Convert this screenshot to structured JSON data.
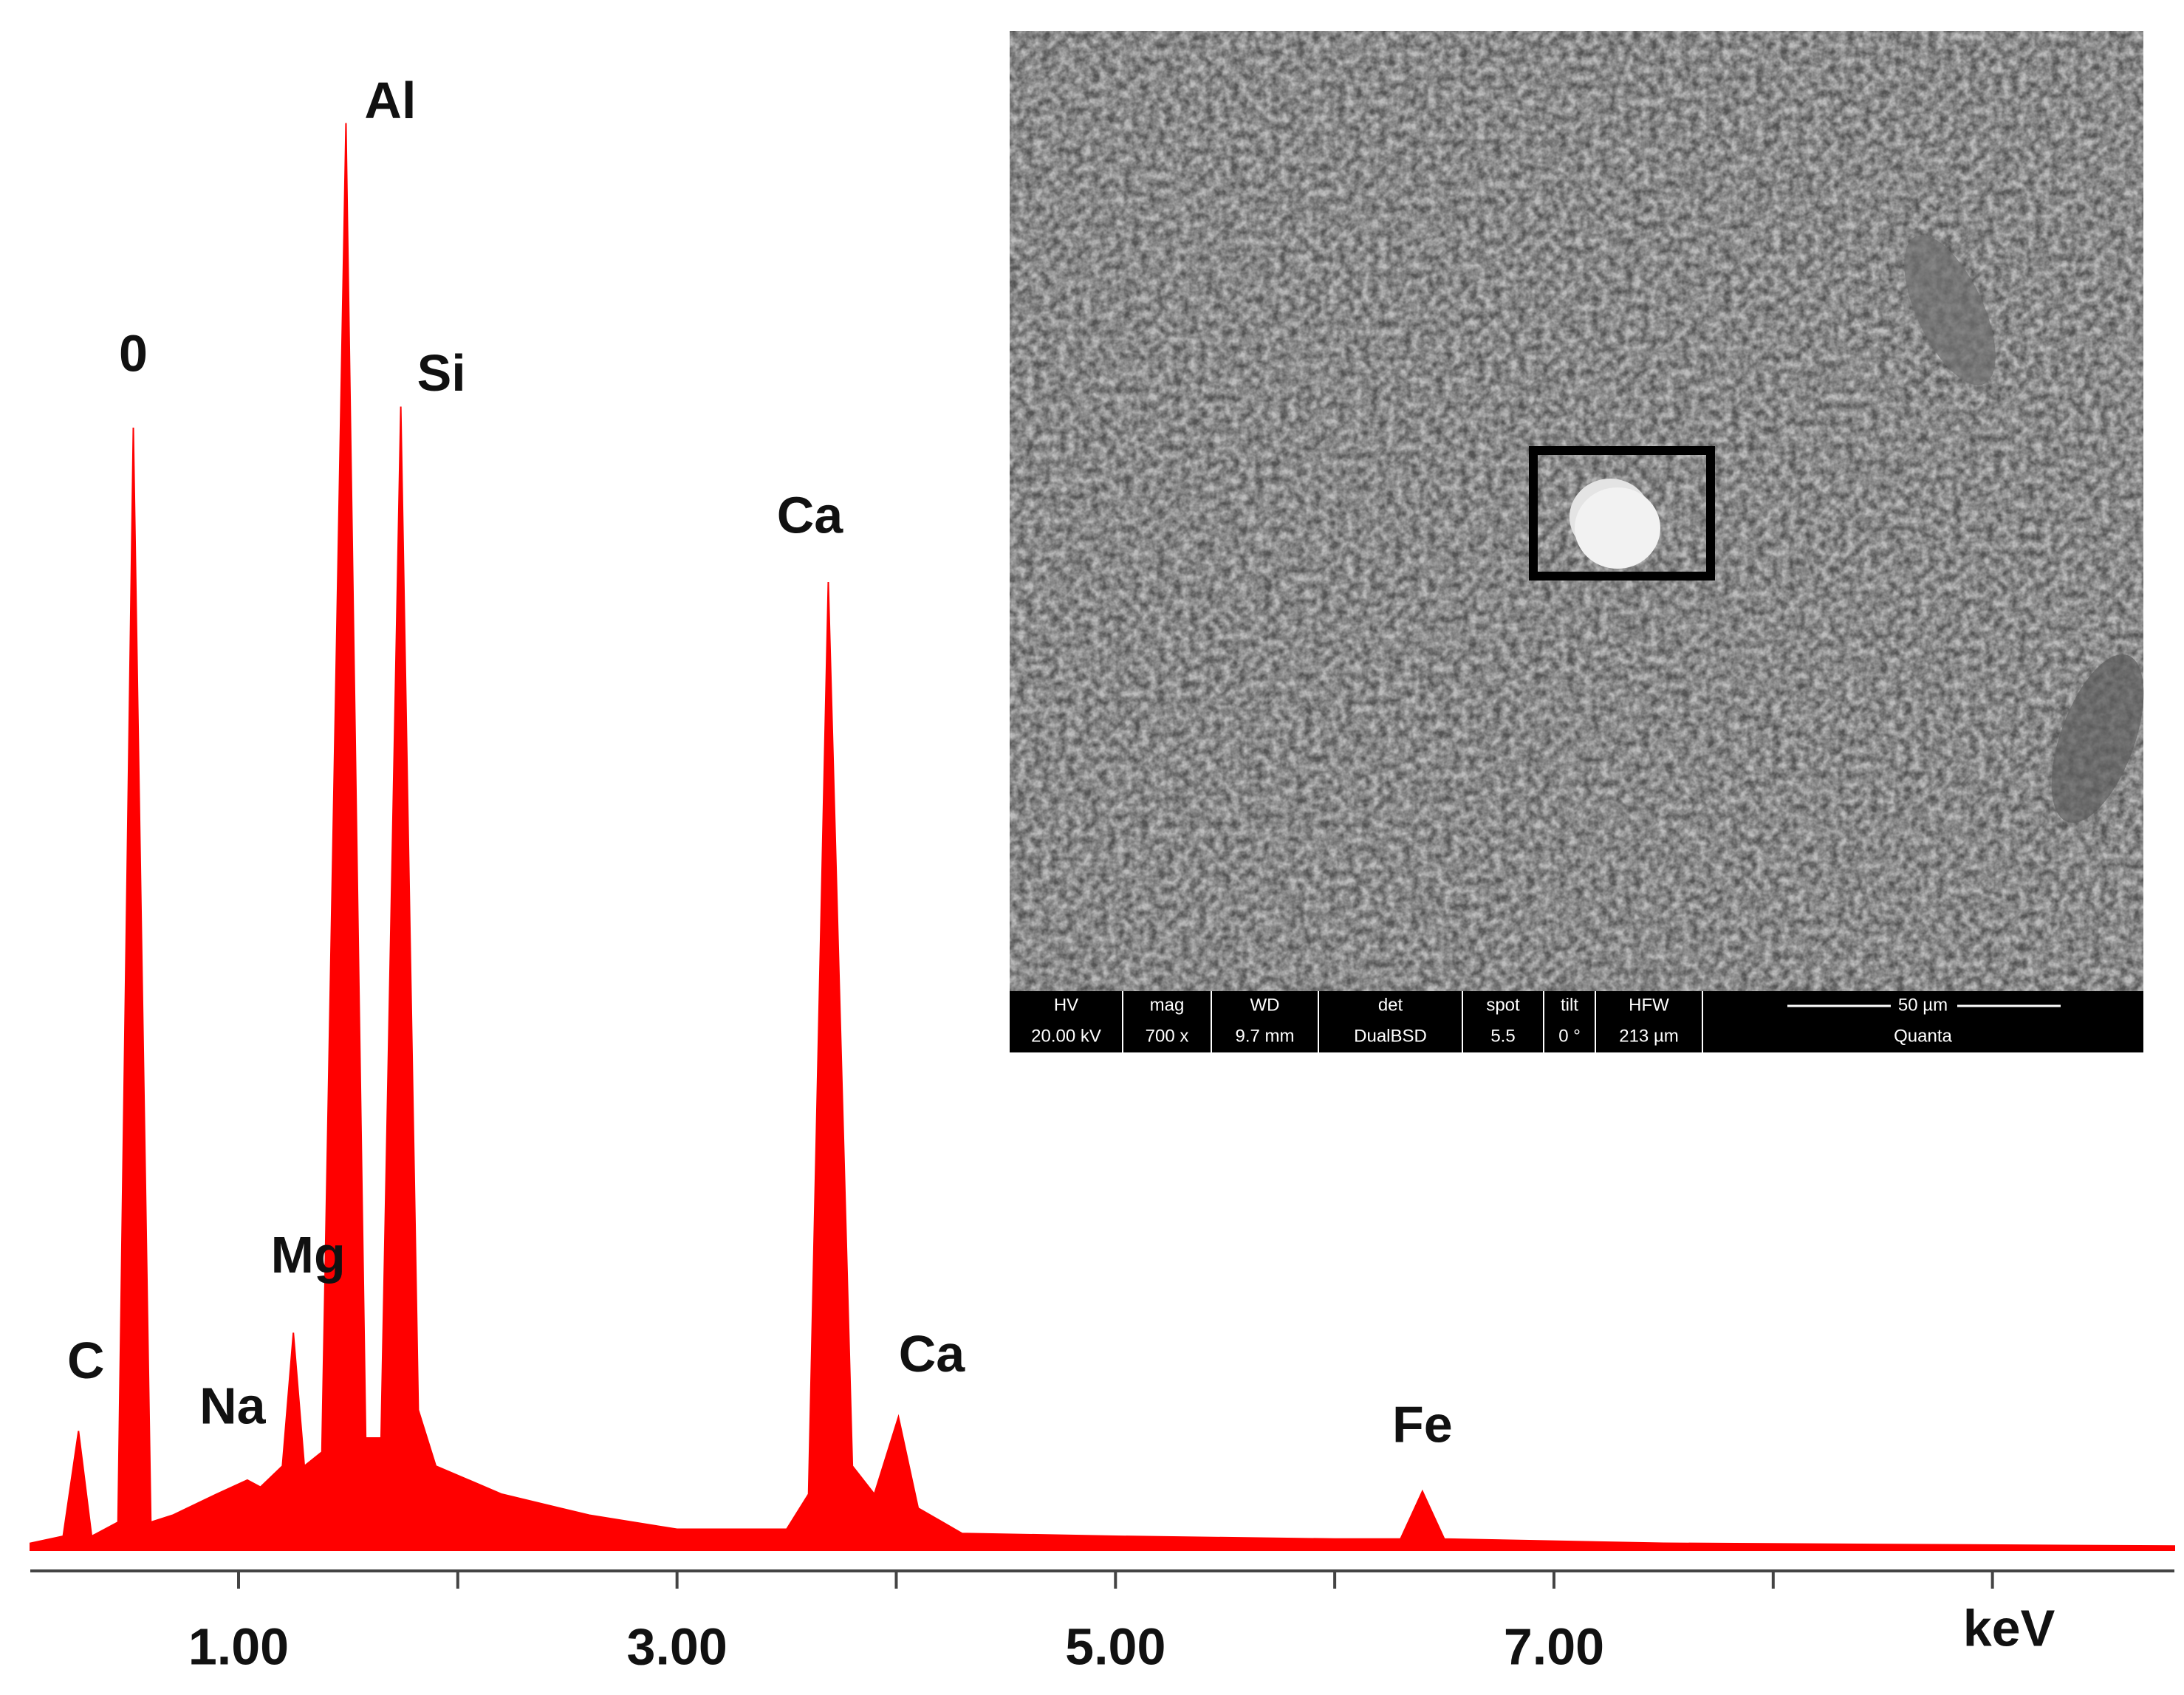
{
  "chart_data": {
    "type": "area",
    "color": "#ff0000",
    "xlabel": "keV",
    "xlim": [
      0.05,
      9.83
    ],
    "ylim": [
      0,
      1050
    ],
    "xticks": [
      {
        "value": 1,
        "label": "1.00"
      },
      {
        "value": 3,
        "label": "3.00"
      },
      {
        "value": 5,
        "label": "5.00"
      },
      {
        "value": 7,
        "label": "7.00"
      }
    ],
    "minor_xticks": [
      2,
      4,
      6,
      8,
      9
    ],
    "x": [
      0.05,
      0.2,
      0.27,
      0.33,
      0.45,
      0.52,
      0.6,
      0.7,
      0.9,
      1.04,
      1.1,
      1.2,
      1.25,
      1.3,
      1.38,
      1.49,
      1.58,
      1.65,
      1.74,
      1.82,
      1.9,
      2.2,
      2.6,
      3.0,
      3.5,
      3.6,
      3.69,
      3.8,
      3.9,
      4.01,
      4.1,
      4.3,
      5.0,
      6.0,
      6.3,
      6.4,
      6.5,
      7.5,
      9.83
    ],
    "values": [
      5,
      10,
      85,
      10,
      20,
      800,
      20,
      25,
      40,
      50,
      45,
      60,
      155,
      60,
      70,
      1017,
      80,
      80,
      815,
      100,
      60,
      40,
      25,
      15,
      15,
      40,
      690,
      60,
      40,
      95,
      30,
      12,
      10,
      8,
      8,
      42,
      8,
      5,
      3
    ],
    "annotations": [
      {
        "text": "C",
        "x": 0.27
      },
      {
        "text": "0",
        "x": 0.52
      },
      {
        "text": "Na",
        "x": 1.04
      },
      {
        "text": "Mg",
        "x": 1.25
      },
      {
        "text": "Al",
        "x": 1.49
      },
      {
        "text": "Si",
        "x": 1.74
      },
      {
        "text": "Ca",
        "x": 3.69
      },
      {
        "text": "Ca",
        "x": 4.01
      },
      {
        "text": "Fe",
        "x": 6.4
      }
    ]
  },
  "inset": {
    "headers": [
      "HV",
      "mag",
      "WD",
      "det",
      "spot",
      "tilt",
      "HFW",
      "50 µm"
    ],
    "values": [
      "20.00 kV",
      "700 x",
      "9.7 mm",
      "DualBSD",
      "5.5",
      "0 °",
      "213 µm",
      "Quanta"
    ]
  }
}
